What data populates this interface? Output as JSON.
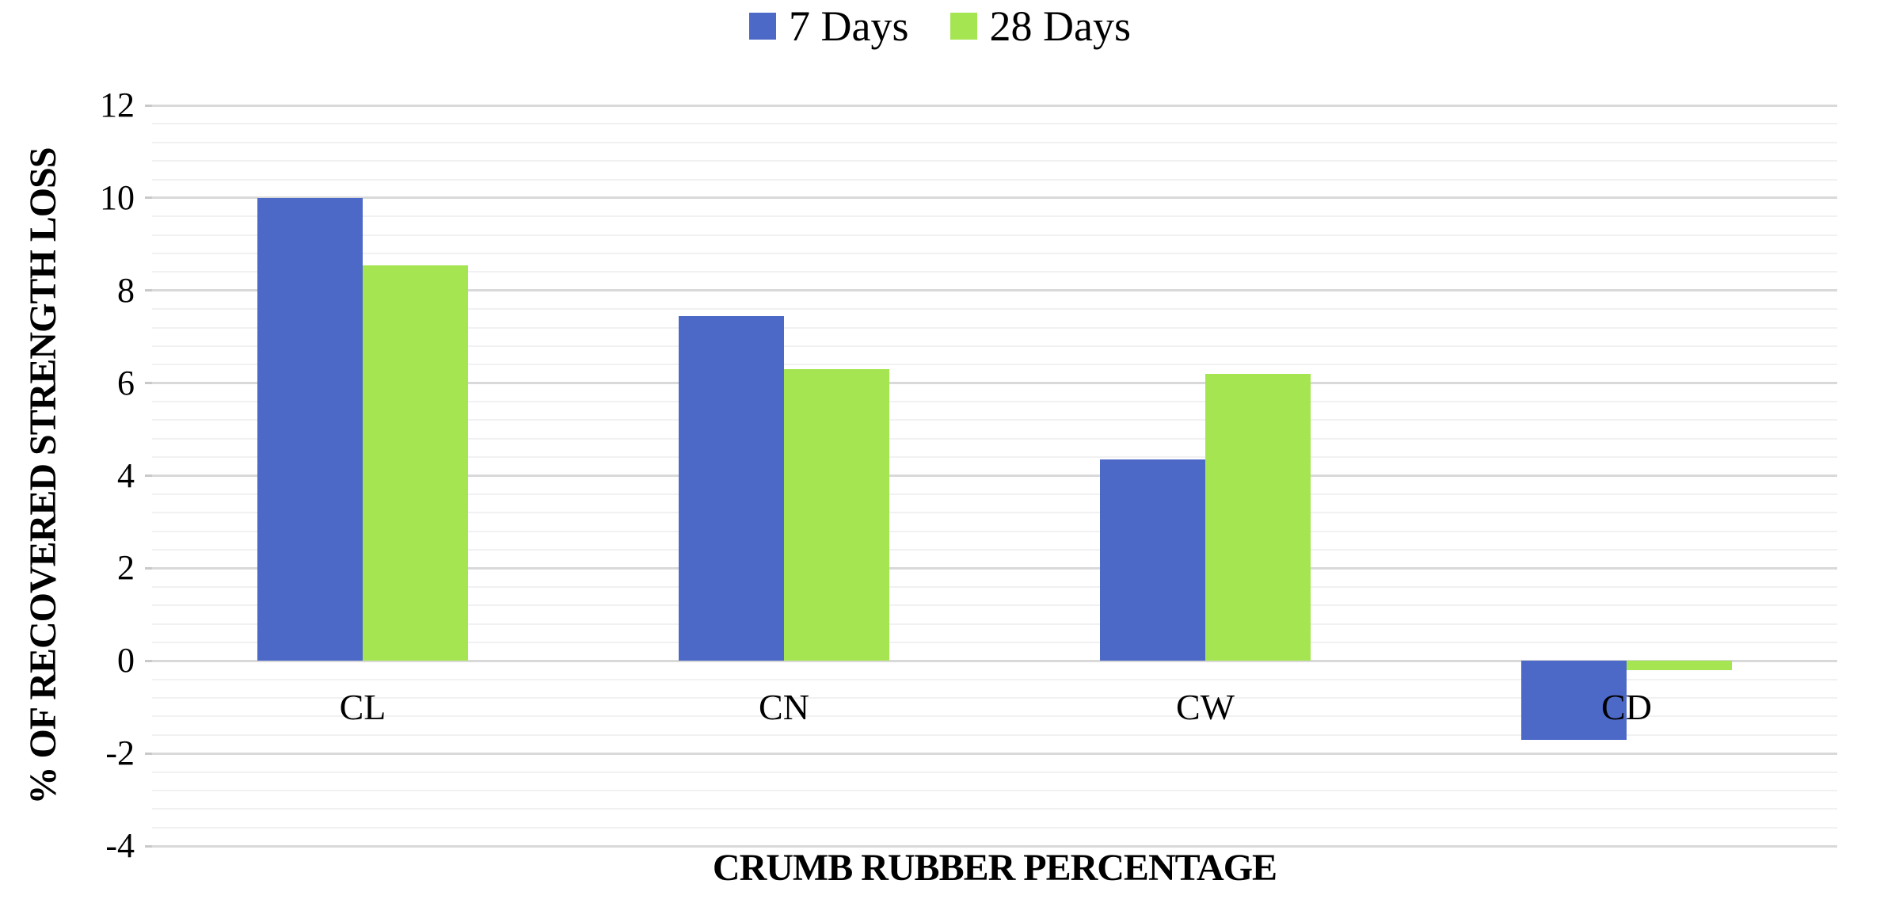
{
  "legend": {
    "items": [
      {
        "label": "7 Days",
        "color": "#4d69c8"
      },
      {
        "label": "28 Days",
        "color": "#a5e552"
      }
    ]
  },
  "chart_data": {
    "type": "bar",
    "categories": [
      "CL",
      "CN",
      "CW",
      "CD"
    ],
    "series": [
      {
        "name": "7 Days",
        "color": "#4d69c8",
        "values": [
          10.0,
          7.45,
          4.35,
          -1.7
        ]
      },
      {
        "name": "28 Days",
        "color": "#a5e552",
        "values": [
          8.55,
          6.3,
          6.2,
          -0.2
        ]
      }
    ],
    "title": "",
    "xlabel": "CRUMB RUBBER PERCENTAGE",
    "ylabel": "% OF RECOVERED STRENGTH LOSS",
    "ylim": [
      -4,
      12
    ],
    "yticks": [
      12,
      10,
      8,
      6,
      4,
      2,
      0,
      -2,
      -4
    ],
    "y_major_unit": 2,
    "y_minor_unit": 0.4,
    "grid": "horizontal major+minor",
    "legend_position": "top-center",
    "colors": {
      "major_gridline": "#d9d9d9",
      "minor_gridline": "#f1f1f1",
      "tick_mark": "#c9c9c9",
      "text": "#000000",
      "background": "#ffffff"
    }
  }
}
